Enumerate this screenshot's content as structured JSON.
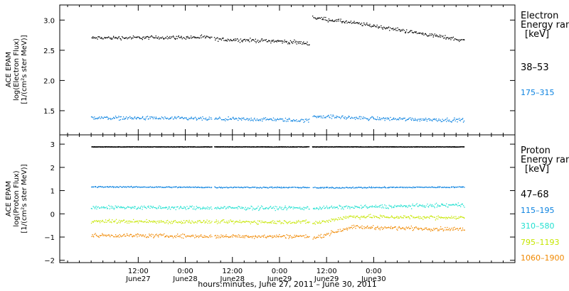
{
  "chart_data": [
    {
      "type": "scatter",
      "panel": "electron",
      "ylabel_lines": [
        "ACE EPAM",
        "log(Electron Flux)",
        "[1/(cm²s ster MeV)]"
      ],
      "ylim": [
        1.1,
        3.25
      ],
      "yticks": [
        1.5,
        2.0,
        2.5,
        3.0
      ],
      "ytick_labels": [
        "1.5",
        "2.0",
        "2.5",
        "3.0"
      ],
      "legend_title": [
        "Electron",
        "Energy ranges"
      ],
      "legend_unit": "[keV]",
      "series": [
        {
          "name": "38–53",
          "color": "#000000",
          "x": [
            0,
            20,
            30.7,
            31.3,
            47,
            55.5,
            56.3,
            70,
            95
          ],
          "values": [
            2.71,
            2.72,
            2.72,
            2.69,
            2.66,
            2.62,
            3.05,
            2.93,
            2.67
          ]
        },
        {
          "name": "175–315",
          "color": "#0a82e0",
          "x": [
            0,
            20,
            30.7,
            31.3,
            47,
            55.5,
            56.3,
            70,
            95
          ],
          "values": [
            1.39,
            1.38,
            1.37,
            1.37,
            1.36,
            1.34,
            1.42,
            1.38,
            1.35
          ]
        }
      ]
    },
    {
      "type": "scatter",
      "panel": "proton",
      "ylabel_lines": [
        "ACE EPAM",
        "log(Proton Flux)",
        "[1/(cm²s ster MeV)]"
      ],
      "ylim": [
        -2.1,
        3.4
      ],
      "yticks": [
        -2,
        -1,
        0,
        1,
        2,
        3
      ],
      "ytick_labels": [
        "−2",
        "−1",
        "0",
        "1",
        "2",
        "3"
      ],
      "legend_title": [
        "Proton",
        "Energy ranges"
      ],
      "legend_unit": "[keV]",
      "series": [
        {
          "name": "47–68",
          "color": "#000000",
          "x": [
            0,
            30.7,
            31.3,
            55.5,
            56.3,
            95
          ],
          "values": [
            2.9,
            2.9,
            2.9,
            2.9,
            2.9,
            2.9
          ]
        },
        {
          "name": "115–195",
          "color": "#0a82e0",
          "x": [
            0,
            30.7,
            31.3,
            55.5,
            56.3,
            95
          ],
          "values": [
            1.18,
            1.16,
            1.16,
            1.15,
            1.14,
            1.17
          ]
        },
        {
          "name": "310–580",
          "color": "#20e0d0",
          "x": [
            0,
            30.7,
            31.3,
            55.5,
            56.3,
            95
          ],
          "values": [
            0.3,
            0.27,
            0.27,
            0.27,
            0.27,
            0.4
          ]
        },
        {
          "name": "795–1193",
          "color": "#c6e600",
          "x": [
            0,
            30.7,
            31.3,
            55.5,
            56.3,
            66,
            95
          ],
          "values": [
            -0.3,
            -0.33,
            -0.33,
            -0.33,
            -0.4,
            -0.1,
            -0.15
          ]
        },
        {
          "name": "1060–1900",
          "color": "#f08800",
          "x": [
            0,
            30.7,
            31.3,
            55.5,
            56.3,
            66,
            95
          ],
          "values": [
            -0.9,
            -0.95,
            -0.95,
            -0.95,
            -1.05,
            -0.55,
            -0.65
          ]
        }
      ]
    }
  ],
  "x_axis": {
    "xlim": [
      -8,
      108
    ],
    "ticks": [
      12,
      24,
      36,
      48,
      60,
      72
    ],
    "tick_time_labels": [
      "12:00",
      "0:00",
      "12:00",
      "0:00",
      "12:00",
      "0:00"
    ],
    "tick_date_labels": [
      "June27",
      "June28",
      "June28",
      "June29",
      "June29",
      "June30"
    ],
    "label": "hours:minutes, June 27, 2011 – June 30, 2011"
  }
}
